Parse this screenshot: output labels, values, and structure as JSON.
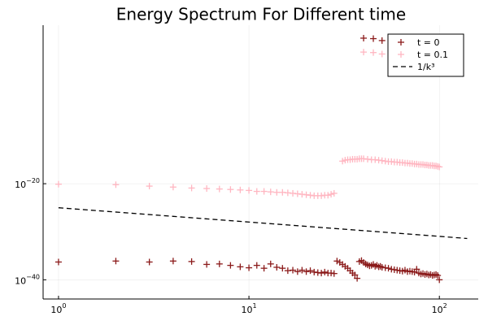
{
  "chart_data": {
    "type": "scatter",
    "title": "Energy Spectrum For Different time",
    "xlabel": "",
    "ylabel": "",
    "x_scale": "log",
    "y_scale": "log",
    "xlim": [
      0.83,
      160
    ],
    "ylim_exponent": [
      -44,
      13
    ],
    "grid": true,
    "x_ticks": [
      {
        "value": 1,
        "base": "10",
        "exp": "0"
      },
      {
        "value": 10,
        "base": "10",
        "exp": "1"
      },
      {
        "value": 100,
        "base": "10",
        "exp": "2"
      }
    ],
    "y_ticks": [
      {
        "value_exp": -20,
        "base": "10",
        "exp": "−20"
      },
      {
        "value_exp": -40,
        "base": "10",
        "exp": "−40"
      }
    ],
    "legend_position": "top-right",
    "colors": {
      "t0": "#8b1a1a",
      "t01": "#ffb6c1",
      "ref": "#000000"
    },
    "series": [
      {
        "name": "t = 0",
        "marker": "+",
        "color": "#8b1a1a",
        "points": [
          [
            1,
            -36.3
          ],
          [
            2,
            -36.1
          ],
          [
            3,
            -36.3
          ],
          [
            4,
            -36.1
          ],
          [
            5,
            -36.2
          ],
          [
            6,
            -36.8
          ],
          [
            7,
            -36.7
          ],
          [
            8,
            -37.0
          ],
          [
            9,
            -37.3
          ],
          [
            10,
            -37.5
          ],
          [
            11,
            -37.0
          ],
          [
            12,
            -37.6
          ],
          [
            13,
            -36.7
          ],
          [
            14,
            -37.4
          ],
          [
            15,
            -37.6
          ],
          [
            16,
            -38.1
          ],
          [
            17,
            -38.0
          ],
          [
            18,
            -38.3
          ],
          [
            19,
            -38.0
          ],
          [
            20,
            -38.3
          ],
          [
            21,
            -38.1
          ],
          [
            22,
            -38.4
          ],
          [
            23,
            -38.5
          ],
          [
            24,
            -38.6
          ],
          [
            25,
            -38.4
          ],
          [
            26,
            -38.6
          ],
          [
            27,
            -38.6
          ],
          [
            28,
            -38.7
          ],
          [
            29,
            -36.1
          ],
          [
            30,
            -36.4
          ],
          [
            31,
            -36.8
          ],
          [
            32,
            -37.2
          ],
          [
            33,
            -37.6
          ],
          [
            34,
            -38.1
          ],
          [
            35,
            -38.6
          ],
          [
            36,
            -39.0
          ],
          [
            37,
            -39.7
          ],
          [
            38,
            -36.2
          ],
          [
            39,
            -36.0
          ],
          [
            40,
            -36.4
          ],
          [
            41,
            -36.7
          ],
          [
            42,
            -36.9
          ],
          [
            43,
            -37.1
          ],
          [
            44,
            -37.0
          ],
          [
            45,
            -36.8
          ],
          [
            46,
            -37.2
          ],
          [
            47,
            -37.0
          ],
          [
            48,
            -37.3
          ],
          [
            49,
            -37.2
          ],
          [
            50,
            -37.4
          ],
          [
            52,
            -37.5
          ],
          [
            54,
            -37.6
          ],
          [
            56,
            -37.8
          ],
          [
            58,
            -37.9
          ],
          [
            60,
            -38.0
          ],
          [
            62,
            -38.1
          ],
          [
            64,
            -38.2
          ],
          [
            66,
            -38.0
          ],
          [
            68,
            -38.3
          ],
          [
            70,
            -38.2
          ],
          [
            72,
            -38.3
          ],
          [
            74,
            -38.4
          ],
          [
            76,
            -37.8
          ],
          [
            78,
            -38.6
          ],
          [
            80,
            -38.8
          ],
          [
            82,
            -38.7
          ],
          [
            84,
            -38.9
          ],
          [
            86,
            -38.8
          ],
          [
            88,
            -39.0
          ],
          [
            90,
            -38.9
          ],
          [
            92,
            -39.1
          ],
          [
            94,
            -39.0
          ],
          [
            96,
            -38.9
          ],
          [
            98,
            -39.1
          ],
          [
            100,
            -40.0
          ],
          [
            40,
            10.3
          ],
          [
            45,
            10.2
          ],
          [
            50,
            9.8
          ]
        ]
      },
      {
        "name": "t = 0.1",
        "marker": "+",
        "color": "#ffb6c1",
        "points": [
          [
            1,
            -20.1
          ],
          [
            2,
            -20.2
          ],
          [
            3,
            -20.5
          ],
          [
            4,
            -20.7
          ],
          [
            5,
            -20.9
          ],
          [
            6,
            -21.0
          ],
          [
            7,
            -21.1
          ],
          [
            8,
            -21.2
          ],
          [
            9,
            -21.3
          ],
          [
            10,
            -21.4
          ],
          [
            11,
            -21.6
          ],
          [
            12,
            -21.6
          ],
          [
            13,
            -21.7
          ],
          [
            14,
            -21.8
          ],
          [
            15,
            -21.8
          ],
          [
            16,
            -21.9
          ],
          [
            17,
            -22.0
          ],
          [
            18,
            -22.1
          ],
          [
            19,
            -22.2
          ],
          [
            20,
            -22.3
          ],
          [
            21,
            -22.4
          ],
          [
            22,
            -22.5
          ],
          [
            23,
            -22.5
          ],
          [
            24,
            -22.5
          ],
          [
            25,
            -22.4
          ],
          [
            26,
            -22.4
          ],
          [
            27,
            -22.2
          ],
          [
            28,
            -22.0
          ],
          [
            31,
            -15.3
          ],
          [
            32,
            -15.1
          ],
          [
            33,
            -15.0
          ],
          [
            34,
            -15.0
          ],
          [
            35,
            -14.9
          ],
          [
            36,
            -14.9
          ],
          [
            37,
            -14.9
          ],
          [
            38,
            -14.8
          ],
          [
            39,
            -14.8
          ],
          [
            40,
            -14.8
          ],
          [
            42,
            -14.9
          ],
          [
            44,
            -15.0
          ],
          [
            46,
            -15.0
          ],
          [
            48,
            -15.1
          ],
          [
            50,
            -15.2
          ],
          [
            52,
            -15.3
          ],
          [
            54,
            -15.4
          ],
          [
            56,
            -15.4
          ],
          [
            58,
            -15.5
          ],
          [
            60,
            -15.5
          ],
          [
            62,
            -15.6
          ],
          [
            64,
            -15.6
          ],
          [
            66,
            -15.7
          ],
          [
            68,
            -15.7
          ],
          [
            70,
            -15.8
          ],
          [
            72,
            -15.8
          ],
          [
            74,
            -15.9
          ],
          [
            76,
            -15.9
          ],
          [
            78,
            -16.0
          ],
          [
            80,
            -16.0
          ],
          [
            82,
            -16.0
          ],
          [
            84,
            -16.1
          ],
          [
            86,
            -16.1
          ],
          [
            88,
            -16.2
          ],
          [
            90,
            -16.2
          ],
          [
            92,
            -16.2
          ],
          [
            94,
            -16.3
          ],
          [
            96,
            -16.3
          ],
          [
            98,
            -16.4
          ],
          [
            100,
            -16.5
          ],
          [
            40,
            7.4
          ],
          [
            45,
            7.3
          ],
          [
            50,
            7.0
          ]
        ]
      },
      {
        "name": "1/k³",
        "marker": "line",
        "style": "dashed",
        "color": "#000000",
        "points": [
          [
            1,
            -25
          ],
          [
            140,
            -31.4
          ]
        ]
      }
    ]
  }
}
